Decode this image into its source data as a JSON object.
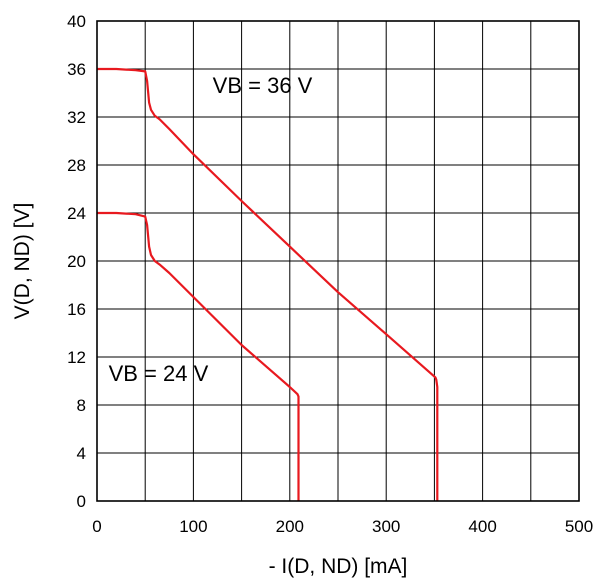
{
  "chart_data": {
    "type": "line",
    "xlabel": "- I(D, ND) [mA]",
    "ylabel": "V(D, ND)  [V]",
    "xlim": [
      0,
      500
    ],
    "ylim": [
      0,
      40
    ],
    "x_ticks": [
      "0",
      "100",
      "200",
      "300",
      "400",
      "500"
    ],
    "y_ticks": [
      "0",
      "4",
      "8",
      "12",
      "16",
      "20",
      "24",
      "28",
      "32",
      "36",
      "40"
    ],
    "grid": true,
    "line_color": "#e8191f",
    "annotations": [
      {
        "text": "VB = 36 V",
        "x": 120,
        "y": 34
      },
      {
        "text": "VB = 24 V",
        "x": 12,
        "y": 10
      }
    ],
    "series": [
      {
        "x": [
          0,
          20,
          40,
          50,
          52,
          54,
          56,
          60,
          65,
          75,
          100,
          150,
          200,
          250,
          300,
          351,
          352,
          353,
          353
        ],
        "y": [
          36,
          36,
          35.9,
          35.8,
          35,
          33.2,
          32.6,
          32.1,
          31.8,
          31,
          28.9,
          25,
          21.2,
          17.4,
          13.9,
          10.3,
          10.1,
          9.5,
          0
        ]
      },
      {
        "x": [
          0,
          20,
          40,
          50,
          52,
          54,
          56,
          60,
          65,
          75,
          100,
          150,
          200,
          208,
          209,
          209
        ],
        "y": [
          24,
          24,
          23.9,
          23.7,
          23,
          21.2,
          20.5,
          20,
          19.7,
          19,
          17,
          13,
          9.5,
          8.9,
          8.7,
          0
        ]
      }
    ]
  }
}
